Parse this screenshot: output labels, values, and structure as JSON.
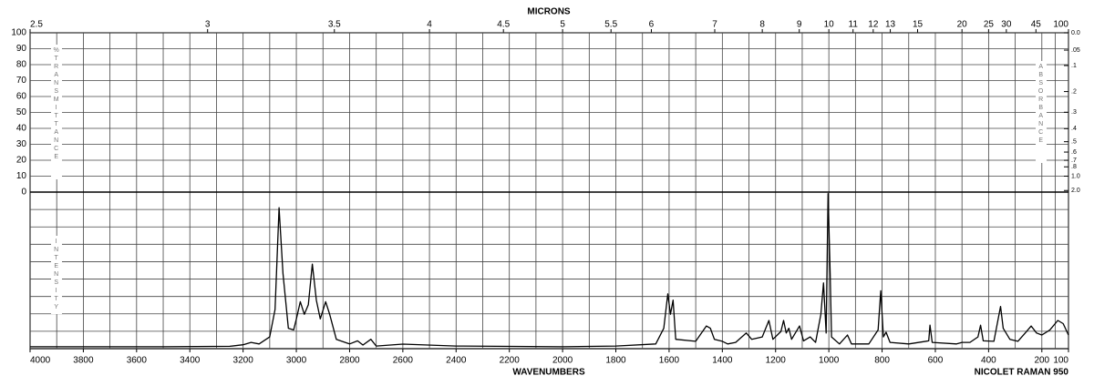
{
  "chart_data": {
    "type": "line",
    "top_axis_label": "MICRONS",
    "x_label": "WAVENUMBERS",
    "instrument": "NICOLET RAMAN 950",
    "left_label": "%TRANSMITTANCE",
    "right_label": "ABSORBANCE",
    "intensity_label": "INTENSITY",
    "color": "#000000",
    "grid": true,
    "xlim": [
      4000,
      100
    ],
    "xticks": [
      4000,
      3800,
      3600,
      3400,
      3200,
      3000,
      2800,
      2600,
      2400,
      2200,
      2000,
      1800,
      1600,
      1400,
      1200,
      1000,
      800,
      600,
      400,
      200,
      100
    ],
    "micron_ticks": [
      2.5,
      3,
      3.5,
      4,
      4.5,
      5,
      5.5,
      6,
      7,
      8,
      9,
      10,
      11,
      12,
      13,
      15,
      20,
      25,
      30,
      45,
      100
    ],
    "tlim": [
      0,
      100
    ],
    "tticks": [
      0,
      10,
      20,
      30,
      40,
      50,
      60,
      70,
      80,
      90,
      100
    ],
    "absorbance_ticks": [
      {
        "value": 0,
        "label": "0.0"
      },
      {
        "value": 0.05,
        "label": ".05"
      },
      {
        "value": 0.1,
        "label": ".1"
      },
      {
        "value": 0.2,
        "label": ".2"
      },
      {
        "value": 0.3,
        "label": ".3"
      },
      {
        "value": 0.4,
        "label": ".4"
      },
      {
        "value": 0.5,
        "label": ".5"
      },
      {
        "value": 0.6,
        "label": ".6"
      },
      {
        "value": 0.7,
        "label": ".7"
      },
      {
        "value": 0.8,
        "label": ".8"
      },
      {
        "value": 1,
        "label": "1.0"
      },
      {
        "value": 2,
        "label": "2.0"
      }
    ],
    "ylim": [
      0,
      100
    ],
    "x": [
      4000,
      3500,
      3250,
      3200,
      3170,
      3140,
      3100,
      3080,
      3065,
      3050,
      3030,
      3010,
      3000,
      2985,
      2970,
      2955,
      2940,
      2925,
      2910,
      2890,
      2875,
      2850,
      2800,
      2770,
      2750,
      2720,
      2700,
      2600,
      2400,
      2000,
      1800,
      1650,
      1620,
      1605,
      1595,
      1585,
      1575,
      1500,
      1460,
      1445,
      1430,
      1400,
      1380,
      1350,
      1310,
      1290,
      1250,
      1225,
      1210,
      1180,
      1170,
      1160,
      1150,
      1140,
      1110,
      1095,
      1070,
      1050,
      1030,
      1020,
      1010,
      1003,
      995,
      990,
      960,
      930,
      915,
      850,
      815,
      805,
      795,
      785,
      770,
      700,
      625,
      620,
      612,
      520,
      500,
      470,
      440,
      430,
      420,
      380,
      355,
      345,
      320,
      290,
      260,
      240,
      220,
      200,
      170,
      140,
      120,
      100
    ],
    "values": [
      1.2,
      1.2,
      1.5,
      2.5,
      4,
      3,
      7.5,
      25,
      90,
      48,
      13,
      12,
      19,
      30,
      22,
      28,
      54,
      31,
      19,
      30,
      22,
      6,
      3,
      5,
      2.3,
      6,
      1.7,
      2.9,
      1.7,
      1.2,
      1.7,
      3,
      13,
      35,
      22,
      31,
      6,
      4.7,
      14.5,
      13,
      6,
      4.7,
      3,
      4,
      10,
      6,
      7.5,
      18,
      6,
      11,
      18,
      10,
      13,
      6,
      14.5,
      5,
      7.5,
      4,
      22,
      42,
      10,
      99,
      48,
      7.5,
      3,
      8.7,
      3,
      3,
      12,
      37,
      7.5,
      10.5,
      4,
      3,
      5,
      15,
      4,
      3,
      4,
      4,
      7.5,
      15,
      5,
      4.7,
      27,
      13,
      6,
      4.7,
      10.5,
      14.5,
      10,
      8.7,
      12,
      18,
      16,
      8.7
    ]
  }
}
